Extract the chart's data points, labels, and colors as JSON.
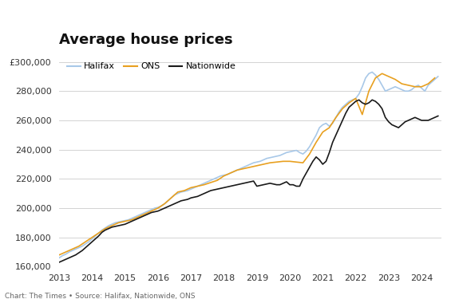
{
  "title": "Average house prices",
  "subtitle": "Chart: The Times • Source: Halifax, Nationwide, ONS",
  "legend": [
    "Halifax",
    "ONS",
    "Nationwide"
  ],
  "colors": {
    "Halifax": "#a8c8e8",
    "ONS": "#e8a020",
    "Nationwide": "#1a1a1a"
  },
  "ylim": [
    160000,
    305000
  ],
  "yticks": [
    160000,
    180000,
    200000,
    220000,
    240000,
    260000,
    280000,
    300000
  ],
  "Halifax": {
    "x": [
      2013.0,
      2013.1,
      2013.2,
      2013.3,
      2013.4,
      2013.5,
      2013.6,
      2013.7,
      2013.8,
      2013.9,
      2014.0,
      2014.1,
      2014.2,
      2014.3,
      2014.4,
      2014.5,
      2014.6,
      2014.7,
      2014.8,
      2014.9,
      2015.0,
      2015.1,
      2015.2,
      2015.3,
      2015.4,
      2015.5,
      2015.6,
      2015.7,
      2015.8,
      2015.9,
      2016.0,
      2016.1,
      2016.2,
      2016.3,
      2016.4,
      2016.5,
      2016.6,
      2016.7,
      2016.8,
      2016.9,
      2017.0,
      2017.1,
      2017.2,
      2017.3,
      2017.4,
      2017.5,
      2017.6,
      2017.7,
      2017.8,
      2017.9,
      2018.0,
      2018.1,
      2018.2,
      2018.3,
      2018.4,
      2018.5,
      2018.6,
      2018.7,
      2018.8,
      2018.9,
      2019.0,
      2019.1,
      2019.2,
      2019.3,
      2019.4,
      2019.5,
      2019.6,
      2019.7,
      2019.8,
      2019.9,
      2020.0,
      2020.1,
      2020.2,
      2020.3,
      2020.4,
      2020.5,
      2020.6,
      2020.7,
      2020.8,
      2020.9,
      2021.0,
      2021.1,
      2021.2,
      2021.3,
      2021.4,
      2021.5,
      2021.6,
      2021.7,
      2021.8,
      2021.9,
      2022.0,
      2022.1,
      2022.2,
      2022.3,
      2022.4,
      2022.5,
      2022.6,
      2022.7,
      2022.8,
      2022.9,
      2023.0,
      2023.1,
      2023.2,
      2023.3,
      2023.4,
      2023.5,
      2023.6,
      2023.7,
      2023.8,
      2023.9,
      2024.0,
      2024.1,
      2024.2,
      2024.3,
      2024.4,
      2024.5
    ],
    "y": [
      166000,
      167500,
      168500,
      170000,
      171000,
      172000,
      173000,
      174000,
      175500,
      177000,
      179000,
      181000,
      183000,
      185000,
      186500,
      188000,
      189000,
      190000,
      190500,
      191000,
      191500,
      192000,
      193000,
      194000,
      195000,
      196000,
      197000,
      198000,
      199000,
      200000,
      200500,
      201500,
      203000,
      205000,
      207000,
      209000,
      210000,
      211000,
      211500,
      212000,
      213000,
      214000,
      215000,
      216000,
      217000,
      218000,
      219000,
      220000,
      221000,
      222000,
      222500,
      223000,
      224000,
      225000,
      226000,
      227000,
      228000,
      229000,
      230000,
      231000,
      231500,
      232000,
      233000,
      234000,
      234500,
      235000,
      235500,
      236000,
      237000,
      238000,
      238500,
      239000,
      239500,
      238000,
      237000,
      239000,
      242000,
      246000,
      250000,
      255000,
      257000,
      258000,
      256000,
      258000,
      262000,
      266000,
      269000,
      271000,
      273000,
      274000,
      275000,
      278000,
      283000,
      289000,
      292000,
      293000,
      291000,
      288000,
      284000,
      280000,
      281000,
      282000,
      283000,
      282000,
      281000,
      280000,
      280000,
      281000,
      283000,
      284000,
      282000,
      280000,
      284000,
      286000,
      288000,
      290000
    ]
  },
  "ONS": {
    "x": [
      2013.0,
      2013.2,
      2013.4,
      2013.6,
      2013.8,
      2014.0,
      2014.2,
      2014.4,
      2014.6,
      2014.8,
      2015.0,
      2015.2,
      2015.4,
      2015.6,
      2015.8,
      2016.0,
      2016.2,
      2016.4,
      2016.6,
      2016.8,
      2017.0,
      2017.2,
      2017.4,
      2017.6,
      2017.8,
      2018.0,
      2018.2,
      2018.4,
      2018.6,
      2018.8,
      2019.0,
      2019.2,
      2019.4,
      2019.6,
      2019.8,
      2020.0,
      2020.2,
      2020.4,
      2020.6,
      2020.8,
      2021.0,
      2021.2,
      2021.4,
      2021.6,
      2021.8,
      2022.0,
      2022.2,
      2022.4,
      2022.6,
      2022.8,
      2023.0,
      2023.2,
      2023.4,
      2023.6,
      2023.8,
      2024.0,
      2024.2,
      2024.4
    ],
    "y": [
      168000,
      170000,
      172000,
      174000,
      177000,
      180000,
      183000,
      186000,
      188000,
      190000,
      191000,
      192000,
      194000,
      196000,
      198000,
      200000,
      203000,
      207000,
      211000,
      212000,
      214000,
      215000,
      216000,
      217500,
      219000,
      222000,
      224000,
      226000,
      227000,
      228000,
      229000,
      230000,
      231000,
      231500,
      232000,
      232000,
      231500,
      231000,
      237000,
      245000,
      252000,
      255000,
      262000,
      268000,
      272000,
      275000,
      264000,
      280000,
      289000,
      292000,
      290000,
      288000,
      285000,
      284000,
      283000,
      283000,
      285000,
      289000
    ]
  },
  "Nationwide": {
    "x": [
      2013.0,
      2013.1,
      2013.2,
      2013.3,
      2013.4,
      2013.5,
      2013.6,
      2013.7,
      2013.8,
      2013.9,
      2014.0,
      2014.1,
      2014.2,
      2014.3,
      2014.4,
      2014.5,
      2014.6,
      2014.7,
      2014.8,
      2014.9,
      2015.0,
      2015.1,
      2015.2,
      2015.3,
      2015.4,
      2015.5,
      2015.6,
      2015.7,
      2015.8,
      2015.9,
      2016.0,
      2016.1,
      2016.2,
      2016.3,
      2016.4,
      2016.5,
      2016.6,
      2016.7,
      2016.8,
      2016.9,
      2017.0,
      2017.1,
      2017.2,
      2017.3,
      2017.4,
      2017.5,
      2017.6,
      2017.7,
      2017.8,
      2017.9,
      2018.0,
      2018.1,
      2018.2,
      2018.3,
      2018.4,
      2018.5,
      2018.6,
      2018.7,
      2018.8,
      2018.9,
      2019.0,
      2019.1,
      2019.2,
      2019.3,
      2019.4,
      2019.5,
      2019.6,
      2019.7,
      2019.8,
      2019.9,
      2020.0,
      2020.1,
      2020.2,
      2020.3,
      2020.4,
      2020.5,
      2020.6,
      2020.7,
      2020.8,
      2020.9,
      2021.0,
      2021.1,
      2021.2,
      2021.3,
      2021.4,
      2021.5,
      2021.6,
      2021.7,
      2021.8,
      2021.9,
      2022.0,
      2022.1,
      2022.2,
      2022.3,
      2022.4,
      2022.5,
      2022.6,
      2022.7,
      2022.8,
      2022.9,
      2023.0,
      2023.1,
      2023.2,
      2023.3,
      2023.4,
      2023.5,
      2023.6,
      2023.7,
      2023.8,
      2023.9,
      2024.0,
      2024.1,
      2024.2,
      2024.3,
      2024.4,
      2024.5
    ],
    "y": [
      163000,
      164000,
      165000,
      166000,
      167000,
      168000,
      169500,
      171000,
      173000,
      175000,
      177000,
      179000,
      181000,
      183500,
      185000,
      186000,
      187000,
      187500,
      188000,
      188500,
      189000,
      190000,
      191000,
      192000,
      193000,
      194000,
      195000,
      196000,
      197000,
      197500,
      198000,
      199000,
      200000,
      201000,
      202000,
      203000,
      204000,
      205000,
      205500,
      206000,
      207000,
      207500,
      208000,
      209000,
      210000,
      211000,
      212000,
      212500,
      213000,
      213500,
      214000,
      214500,
      215000,
      215500,
      216000,
      216500,
      217000,
      217500,
      218000,
      218500,
      215000,
      215500,
      216000,
      216500,
      217000,
      216500,
      216000,
      216000,
      217000,
      218000,
      216000,
      216000,
      215000,
      215000,
      220000,
      224000,
      228000,
      232000,
      235000,
      233000,
      230000,
      232000,
      238000,
      245000,
      250000,
      255000,
      260000,
      265000,
      269000,
      271000,
      273000,
      274000,
      272000,
      271000,
      272000,
      274000,
      273000,
      271000,
      268000,
      262000,
      259000,
      257000,
      256000,
      255000,
      257000,
      259000,
      260000,
      261000,
      262000,
      261000,
      260000,
      260000,
      260000,
      261000,
      262000,
      263000
    ]
  }
}
